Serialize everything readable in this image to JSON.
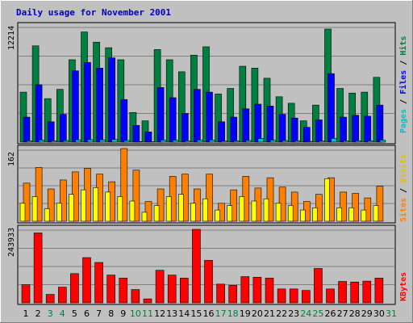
{
  "colors": {
    "background": "#C0C0C0",
    "title": "#0000C0",
    "hits": "#008040",
    "files": "#0000FF",
    "pages": "#00C0C0",
    "visits": "#FF8000",
    "sites": "#FFFF00",
    "kbytes": "#FF0000",
    "weekend_label": "#008040",
    "weekday_label": "#000000"
  },
  "chart_data": [
    {
      "type": "bar",
      "title": "Daily usage for November 2001",
      "ymax_label": "12214",
      "ylim": [
        0,
        12214
      ],
      "legend": [
        "Pages",
        "Files",
        "Hits"
      ],
      "grid": true,
      "categories": [
        "1",
        "2",
        "3",
        "4",
        "5",
        "6",
        "7",
        "8",
        "9",
        "10",
        "11",
        "12",
        "13",
        "14",
        "15",
        "16",
        "17",
        "18",
        "19",
        "20",
        "21",
        "22",
        "23",
        "24",
        "25",
        "26",
        "27",
        "28",
        "29",
        "30",
        "31"
      ],
      "weekend_days": [
        "3",
        "4",
        "10",
        "11",
        "17",
        "18",
        "24",
        "25",
        "31"
      ],
      "series": [
        {
          "name": "Hits",
          "values": [
            5400,
            10400,
            4700,
            5700,
            8900,
            11900,
            10800,
            10200,
            8900,
            3200,
            2300,
            10000,
            8900,
            7600,
            9400,
            10300,
            5200,
            5800,
            8200,
            8000,
            6900,
            4900,
            4200,
            2300,
            4000,
            12214,
            5800,
            5300,
            5400,
            7000,
            0
          ]
        },
        {
          "name": "Files",
          "values": [
            2700,
            6200,
            2200,
            3000,
            7700,
            8600,
            8000,
            9100,
            4600,
            1800,
            1100,
            5900,
            4800,
            3100,
            5700,
            5400,
            2200,
            2700,
            3600,
            4100,
            3900,
            3000,
            2600,
            1600,
            2400,
            7400,
            2700,
            2900,
            2800,
            4000,
            0
          ]
        },
        {
          "name": "Pages",
          "values": [
            150,
            220,
            140,
            170,
            250,
            260,
            250,
            280,
            180,
            60,
            40,
            220,
            200,
            150,
            220,
            230,
            120,
            140,
            180,
            380,
            200,
            170,
            150,
            80,
            130,
            400,
            140,
            150,
            140,
            200,
            0
          ]
        }
      ]
    },
    {
      "type": "bar",
      "ymax_label": "162",
      "ylim": [
        0,
        162
      ],
      "legend": [
        "Sites",
        "Visits"
      ],
      "grid": true,
      "categories": [
        "1",
        "2",
        "3",
        "4",
        "5",
        "6",
        "7",
        "8",
        "9",
        "10",
        "11",
        "12",
        "13",
        "14",
        "15",
        "16",
        "17",
        "18",
        "19",
        "20",
        "21",
        "22",
        "23",
        "24",
        "25",
        "26",
        "27",
        "28",
        "29",
        "30",
        "31"
      ],
      "series": [
        {
          "name": "Visits",
          "values": [
            85,
            120,
            72,
            92,
            110,
            118,
            105,
            88,
            162,
            114,
            44,
            72,
            100,
            105,
            72,
            105,
            40,
            70,
            100,
            74,
            97,
            76,
            65,
            44,
            60,
            97,
            65,
            62,
            52,
            78,
            0
          ]
        },
        {
          "name": "Sites",
          "values": [
            40,
            55,
            28,
            40,
            60,
            70,
            75,
            65,
            55,
            45,
            20,
            35,
            55,
            60,
            40,
            50,
            25,
            35,
            55,
            45,
            50,
            40,
            35,
            25,
            30,
            95,
            30,
            30,
            25,
            35,
            0
          ]
        }
      ]
    },
    {
      "type": "bar",
      "ymax_label": "243933",
      "ylim": [
        0,
        243933
      ],
      "legend": [
        "KBytes"
      ],
      "grid": true,
      "categories": [
        "1",
        "2",
        "3",
        "4",
        "5",
        "6",
        "7",
        "8",
        "9",
        "10",
        "11",
        "12",
        "13",
        "14",
        "15",
        "16",
        "17",
        "18",
        "19",
        "20",
        "21",
        "22",
        "23",
        "24",
        "25",
        "26",
        "27",
        "28",
        "29",
        "30",
        "31"
      ],
      "series": [
        {
          "name": "KBytes",
          "values": [
            60000,
            232000,
            28000,
            52000,
            97000,
            150000,
            134000,
            92000,
            82000,
            44000,
            13000,
            108000,
            92000,
            82000,
            243933,
            141000,
            62000,
            58000,
            87000,
            85000,
            82000,
            46000,
            46000,
            41000,
            114000,
            46000,
            71000,
            69000,
            72000,
            82000,
            0
          ]
        }
      ]
    }
  ]
}
